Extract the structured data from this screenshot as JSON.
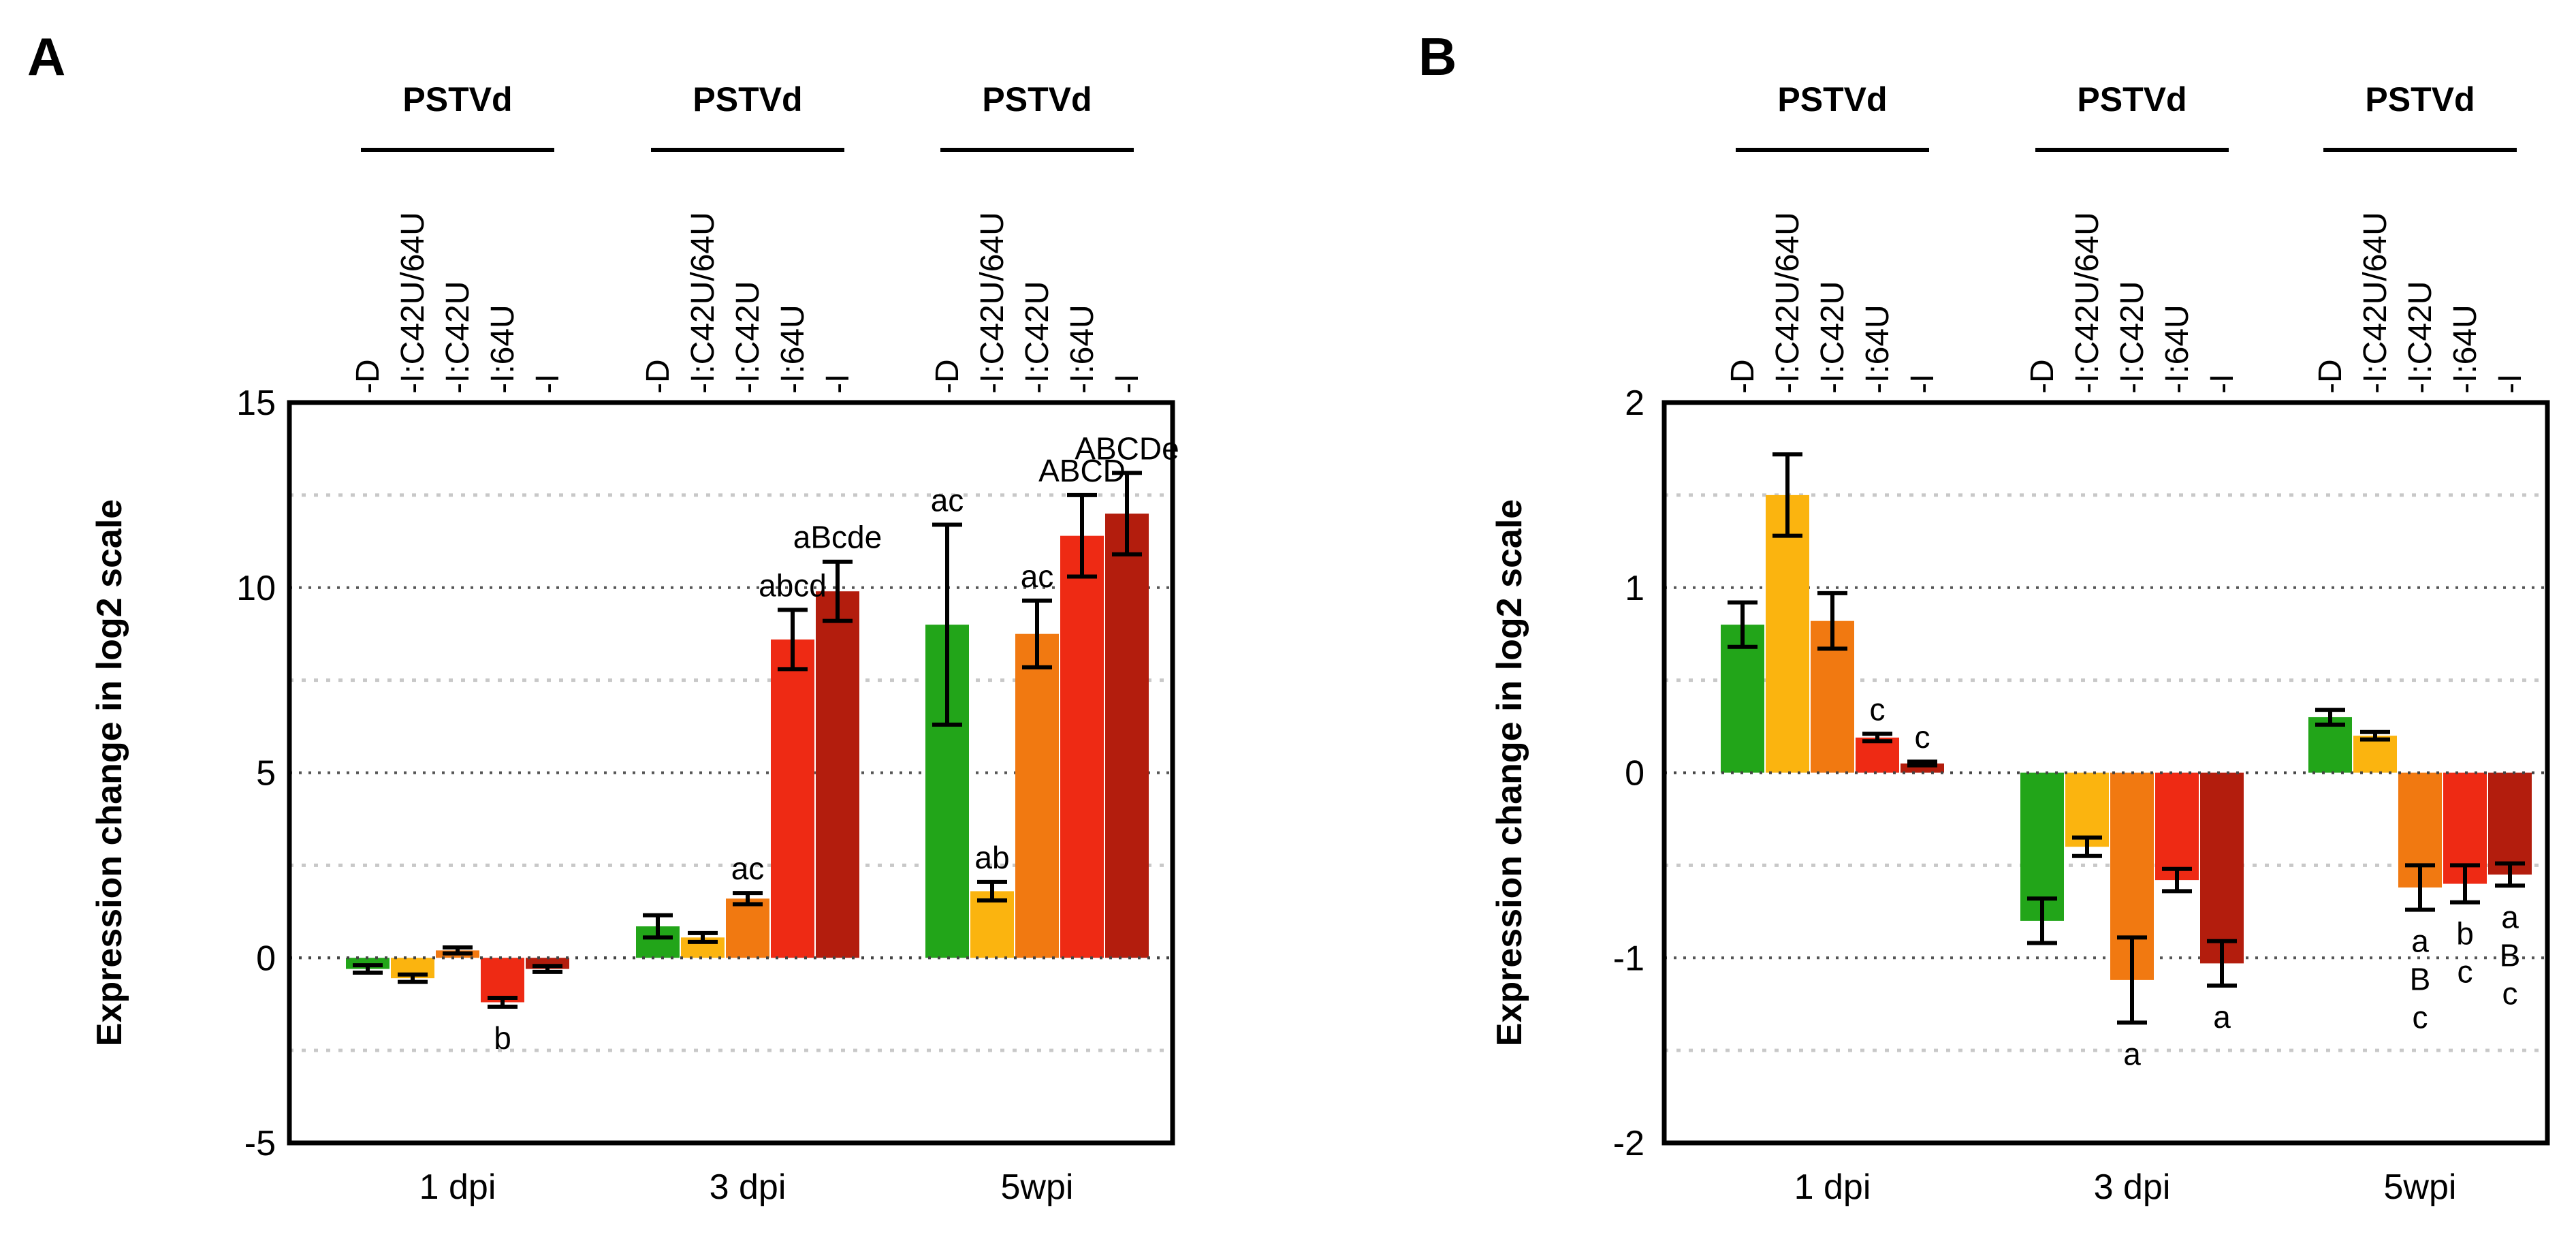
{
  "chart_data": [
    {
      "type": "bar",
      "panel_label": "A",
      "ylabel": "Expression change in log2 scale",
      "xlabel": "",
      "ylim": [
        -5,
        15
      ],
      "yticks": [
        -5,
        0,
        5,
        10,
        15
      ],
      "ytick_labels": [
        "-5",
        "0",
        "5",
        "10",
        "15"
      ],
      "grid": "horizontal dotted at every 2.5",
      "groups": [
        "1 dpi",
        "3 dpi",
        "5wpi"
      ],
      "group_header": "PSTVd",
      "conditions": [
        "-D",
        "-I:C42U/64U",
        "-I:C42U",
        "-I:64U",
        "-I"
      ],
      "series_colors": [
        "#22a519",
        "#fbb40f",
        "#f17911",
        "#ee2a14",
        "#b31d0d"
      ],
      "series": [
        {
          "name": "1 dpi",
          "values": [
            -0.3,
            -0.55,
            0.2,
            -1.2,
            -0.3
          ],
          "errors": [
            0.1,
            0.1,
            0.08,
            0.12,
            0.08
          ]
        },
        {
          "name": "3 dpi",
          "values": [
            0.85,
            0.55,
            1.6,
            8.6,
            9.9
          ],
          "errors": [
            0.3,
            0.12,
            0.15,
            0.8,
            0.8
          ]
        },
        {
          "name": "5wpi",
          "values": [
            9.0,
            1.8,
            8.75,
            11.4,
            12.0
          ],
          "errors": [
            2.7,
            0.25,
            0.9,
            1.1,
            1.1
          ]
        }
      ],
      "annotations": [
        {
          "group": 0,
          "bar": 3,
          "text": "b",
          "position": "below"
        },
        {
          "group": 1,
          "bar": 2,
          "text": "ac",
          "position": "above"
        },
        {
          "group": 1,
          "bar": 3,
          "text": "abcd",
          "position": "above"
        },
        {
          "group": 1,
          "bar": 4,
          "text": "aBcde",
          "position": "above"
        },
        {
          "group": 2,
          "bar": 0,
          "text": "ac",
          "position": "above"
        },
        {
          "group": 2,
          "bar": 1,
          "text": "ab",
          "position": "above"
        },
        {
          "group": 2,
          "bar": 2,
          "text": "ac",
          "position": "above"
        },
        {
          "group": 2,
          "bar": 3,
          "text": "ABCD",
          "position": "above"
        },
        {
          "group": 2,
          "bar": 4,
          "text": "ABCDe",
          "position": "above"
        }
      ]
    },
    {
      "type": "bar",
      "panel_label": "B",
      "ylabel": "Expression change in log2 scale",
      "xlabel": "",
      "ylim": [
        -2,
        2
      ],
      "yticks": [
        -2,
        -1,
        0,
        1,
        2
      ],
      "ytick_labels": [
        "-2",
        "-1",
        "0",
        "1",
        "2"
      ],
      "grid": "horizontal dotted at every 0.5",
      "groups": [
        "1 dpi",
        "3 dpi",
        "5wpi"
      ],
      "group_header": "PSTVd",
      "conditions": [
        "-D",
        "-I:C42U/64U",
        "-I:C42U",
        "-I:64U",
        "-I"
      ],
      "series_colors": [
        "#22a519",
        "#fbb40f",
        "#f17911",
        "#ee2a14",
        "#b31d0d"
      ],
      "series": [
        {
          "name": "1 dpi",
          "values": [
            0.8,
            1.5,
            0.82,
            0.19,
            0.05
          ],
          "errors": [
            0.12,
            0.22,
            0.15,
            0.02,
            0.01
          ]
        },
        {
          "name": "3 dpi",
          "values": [
            -0.8,
            -0.4,
            -1.12,
            -0.58,
            -1.03
          ],
          "errors": [
            0.12,
            0.05,
            0.23,
            0.06,
            0.12
          ]
        },
        {
          "name": "5wpi",
          "values": [
            0.3,
            0.2,
            -0.62,
            -0.6,
            -0.55
          ],
          "errors": [
            0.04,
            0.02,
            0.12,
            0.1,
            0.06
          ]
        }
      ],
      "annotations": [
        {
          "group": 0,
          "bar": 3,
          "text": "c",
          "position": "above"
        },
        {
          "group": 0,
          "bar": 4,
          "text": "c",
          "position": "above"
        },
        {
          "group": 1,
          "bar": 2,
          "text": "a",
          "position": "below"
        },
        {
          "group": 1,
          "bar": 4,
          "text": "a",
          "position": "below"
        },
        {
          "group": 2,
          "bar": 2,
          "text": "a\nB\nc",
          "position": "below"
        },
        {
          "group": 2,
          "bar": 3,
          "text": "b\nc",
          "position": "below"
        },
        {
          "group": 2,
          "bar": 4,
          "text": "a\nB\nc",
          "position": "below"
        }
      ]
    }
  ]
}
